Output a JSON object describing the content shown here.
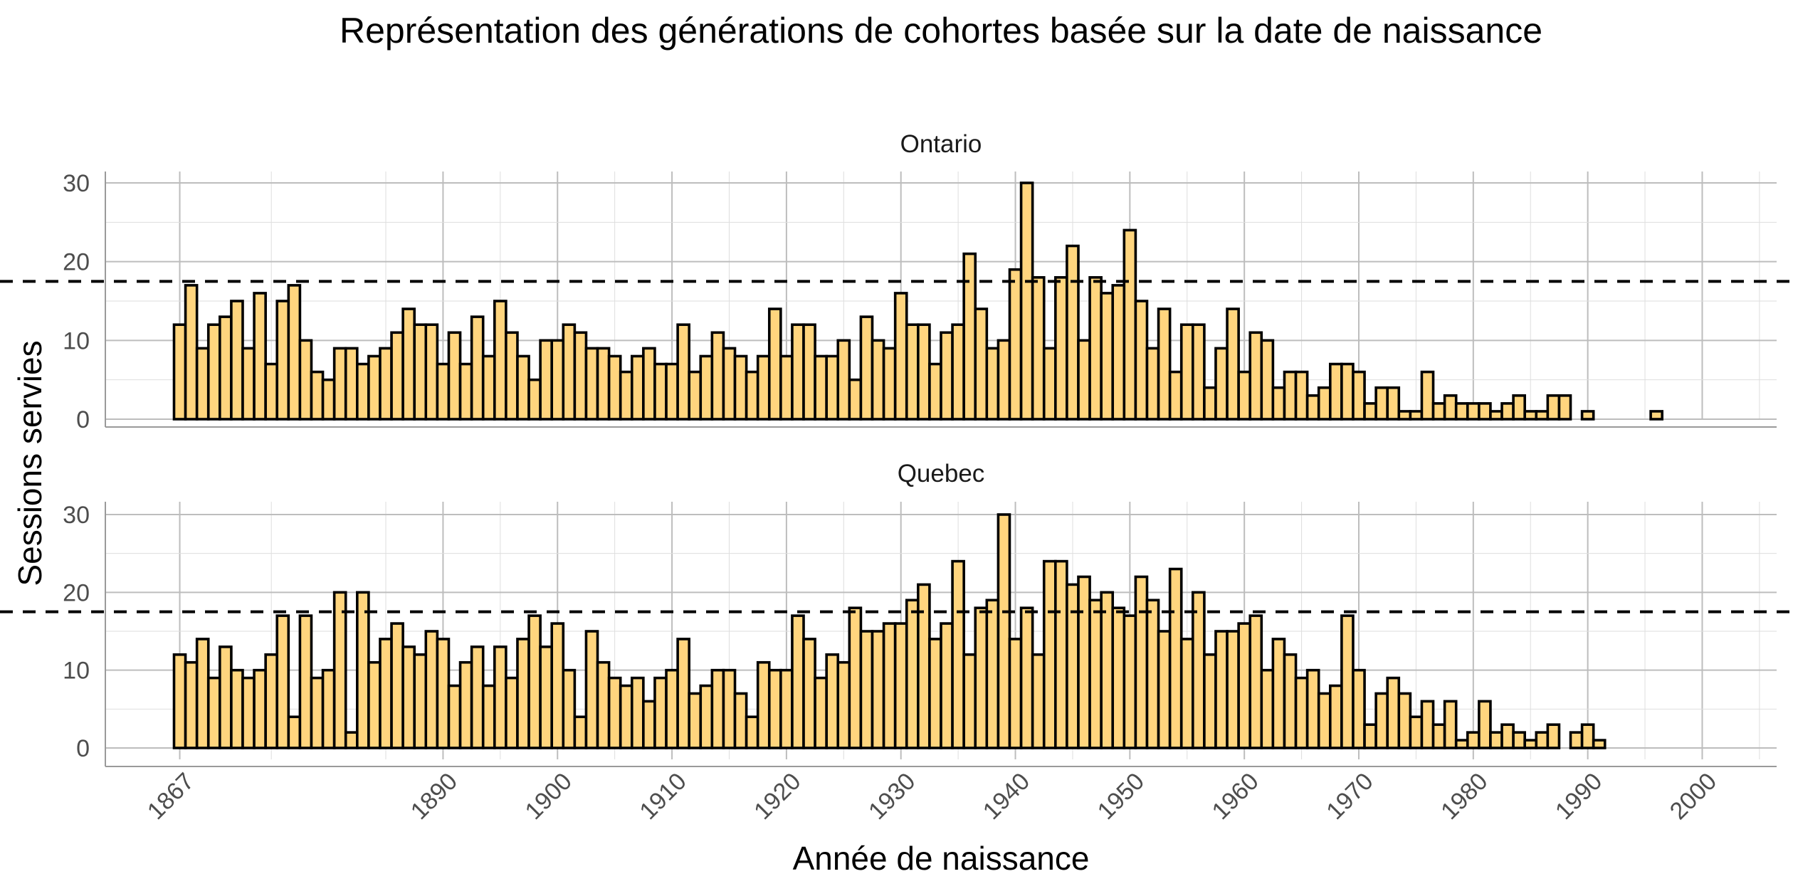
{
  "chart_data": {
    "type": "bar",
    "title": "Représentation des générations de cohortes basée sur la date de naissance",
    "xlabel": "Année de naissance",
    "ylabel": "Sessions servies",
    "x_ticks": [
      1867,
      1890,
      1900,
      1910,
      1920,
      1930,
      1940,
      1950,
      1960,
      1970,
      1980,
      1990,
      2000
    ],
    "xlim": [
      1860.5,
      2006.5
    ],
    "ylim": [
      0,
      31
    ],
    "y_ticks": [
      0,
      10,
      20,
      30
    ],
    "x_start": 1867,
    "reference_line": 17.5,
    "grid": true,
    "colors": {
      "bar_fill": "#ffd57e",
      "bar_stroke": "#000000",
      "grid": "#bdbdbd",
      "reference": "#000000"
    },
    "panels": [
      {
        "label": "Ontario",
        "values": [
          12,
          17,
          9,
          12,
          13,
          15,
          9,
          16,
          7,
          15,
          17,
          10,
          6,
          5,
          9,
          9,
          7,
          8,
          9,
          11,
          14,
          12,
          12,
          7,
          11,
          7,
          13,
          8,
          15,
          11,
          8,
          5,
          10,
          10,
          12,
          11,
          9,
          9,
          8,
          6,
          8,
          9,
          7,
          7,
          12,
          6,
          8,
          11,
          9,
          8,
          6,
          8,
          14,
          8,
          12,
          12,
          8,
          8,
          10,
          5,
          13,
          10,
          9,
          16,
          12,
          12,
          7,
          11,
          12,
          21,
          14,
          9,
          10,
          19,
          30,
          18,
          9,
          18,
          22,
          10,
          18,
          16,
          17,
          24,
          15,
          9,
          14,
          6,
          12,
          12,
          4,
          9,
          14,
          6,
          11,
          10,
          4,
          6,
          6,
          3,
          4,
          7,
          7,
          6,
          2,
          4,
          4,
          1,
          1,
          6,
          2,
          3,
          2,
          2,
          2,
          1,
          2,
          3,
          1,
          1,
          3,
          3,
          0,
          1,
          0,
          0,
          0,
          0,
          0,
          1,
          0,
          0,
          0
        ]
      },
      {
        "label": "Quebec",
        "values": [
          12,
          11,
          14,
          9,
          13,
          10,
          9,
          10,
          12,
          17,
          4,
          17,
          9,
          10,
          20,
          2,
          20,
          11,
          14,
          16,
          13,
          12,
          15,
          14,
          8,
          11,
          13,
          8,
          13,
          9,
          14,
          17,
          13,
          16,
          10,
          4,
          15,
          11,
          9,
          8,
          9,
          6,
          9,
          10,
          14,
          7,
          8,
          10,
          10,
          7,
          4,
          11,
          10,
          10,
          17,
          14,
          9,
          12,
          11,
          18,
          15,
          15,
          16,
          16,
          19,
          21,
          14,
          16,
          24,
          12,
          18,
          19,
          30,
          14,
          18,
          12,
          24,
          24,
          21,
          22,
          19,
          20,
          18,
          17,
          22,
          19,
          15,
          23,
          14,
          20,
          12,
          15,
          15,
          16,
          17,
          10,
          14,
          12,
          9,
          10,
          7,
          8,
          17,
          10,
          3,
          7,
          9,
          7,
          4,
          6,
          3,
          6,
          1,
          2,
          6,
          2,
          3,
          2,
          1,
          2,
          3,
          0,
          2,
          3,
          1,
          0,
          0,
          0,
          0,
          0,
          0,
          0,
          0
        ]
      }
    ]
  }
}
